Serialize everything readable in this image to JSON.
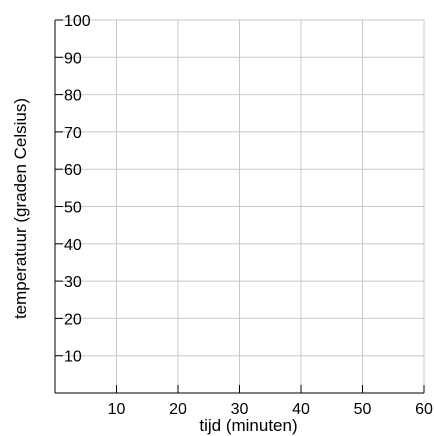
{
  "chart_data": {
    "type": "line",
    "title": "",
    "xlabel": "tijd (minuten)",
    "ylabel": "temperatuur (graden Celsius)",
    "xlim": [
      0,
      60
    ],
    "ylim": [
      0,
      100
    ],
    "x_ticks": [
      10,
      20,
      30,
      40,
      50,
      60
    ],
    "y_ticks": [
      10,
      20,
      30,
      40,
      50,
      60,
      70,
      80,
      90,
      100
    ],
    "x_tick_labels": [
      "10",
      "20",
      "30",
      "40",
      "50",
      "60"
    ],
    "y_tick_labels": [
      "10",
      "20",
      "30",
      "40",
      "50",
      "60",
      "70",
      "80",
      "90",
      "100"
    ],
    "series": [],
    "grid": true,
    "colors": {
      "grid": "#c8c8c8",
      "axis": "#000000",
      "text": "#000000"
    }
  }
}
